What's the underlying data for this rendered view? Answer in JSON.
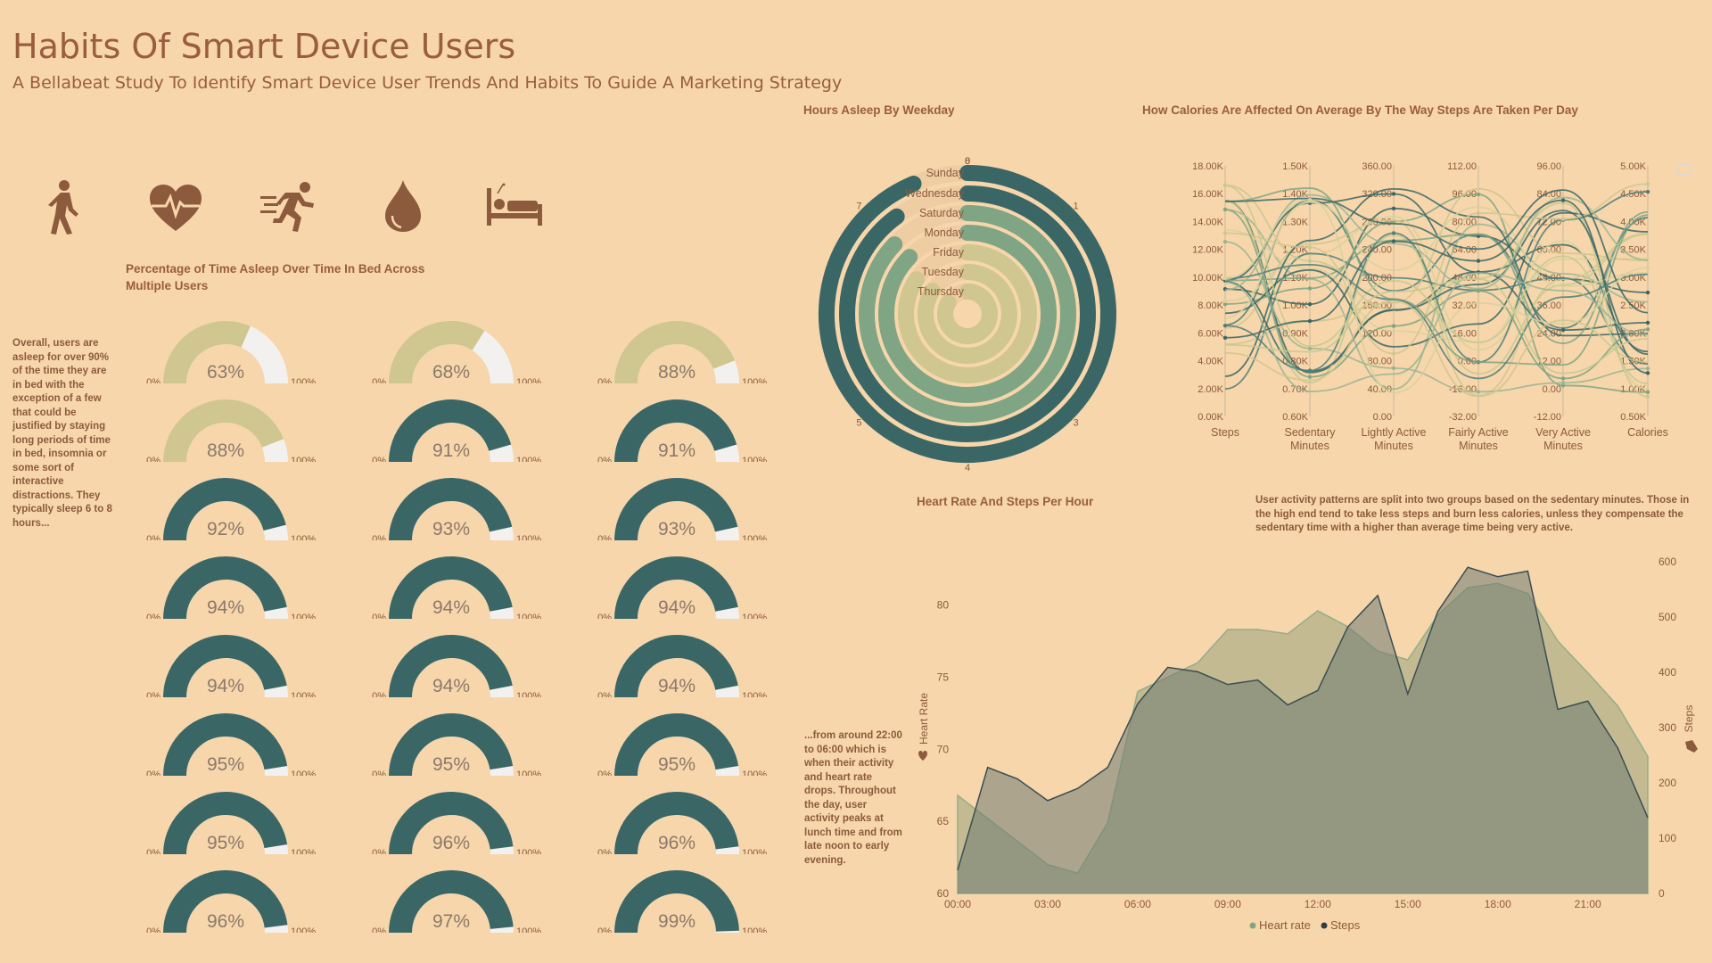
{
  "header": {
    "title": "Habits Of Smart Device Users",
    "subtitle": "A Bellabeat Study To Identify Smart Device User Trends And Habits To Guide A Marketing Strategy"
  },
  "icons": [
    "walking-icon",
    "heart-rate-icon",
    "running-icon",
    "calorie-flame-icon",
    "sleep-bed-icon"
  ],
  "colors": {
    "background": "#F7D6AB",
    "dark_teal": "#3A6766",
    "sage": "#7FA584",
    "khaki": "#CFC690",
    "track": "#F3F1EF",
    "text": "#9A5D3E"
  },
  "notes": {
    "sleep": "Overall, users are asleep for over 90% of the time they are in bed with the exception of a few that could be justified by staying long periods of time in bed, insomnia or some sort of interactive distractions. They typically sleep 6 to 8 hours...",
    "heart": "...from around 22:00 to 06:00 which is when their activity and heart rate drops. Throughout the day, user activity peaks at lunch time and from late noon to early evening.",
    "activity": "User activity patterns are split into two groups based on the sedentary minutes. Those in the high end tend to take less steps and burn less calories, unless they compensate the sedentary time with a higher than average time being very active."
  },
  "chart_data": [
    {
      "type": "gauge",
      "title": "Percentage of Time Asleep Over Time In Bed Across Multiple Users",
      "min_label": "0%",
      "max_label": "100%",
      "values": [
        63,
        68,
        88,
        88,
        91,
        91,
        92,
        93,
        93,
        94,
        94,
        94,
        94,
        94,
        94,
        95,
        95,
        95,
        95,
        96,
        96,
        96,
        97,
        99
      ],
      "labels": [
        "63%",
        "68%",
        "88%",
        "88%",
        "91%",
        "91%",
        "92%",
        "93%",
        "93%",
        "94%",
        "94%",
        "94%",
        "94%",
        "94%",
        "94%",
        "95%",
        "95%",
        "95%",
        "95%",
        "96%",
        "96%",
        "96%",
        "97%",
        "99%"
      ]
    },
    {
      "type": "radial-bar",
      "title": "Hours Asleep By Weekday",
      "categories": [
        "Sunday",
        "Wednesday",
        "Saturday",
        "Monday",
        "Friday",
        "Tuesday",
        "Thursday"
      ],
      "values": [
        7.5,
        7.2,
        6.97,
        6.99,
        6.76,
        6.74,
        6.69
      ],
      "ticks": [
        "0",
        "1",
        "3",
        "4",
        "5",
        "7",
        "8"
      ],
      "max": 8
    },
    {
      "type": "parallel-coordinates",
      "title": "How Calories Are Affected On Average By The Way Steps Are Taken Per  Day",
      "axes": [
        {
          "name": "Steps",
          "ticks": [
            "0.00K",
            "2.00K",
            "4.00K",
            "6.00K",
            "8.00K",
            "10.00K",
            "12.00K",
            "14.00K",
            "16.00K",
            "18.00K"
          ]
        },
        {
          "name": "Sedentary Minutes",
          "ticks": [
            "0.60K",
            "0.70K",
            "0.80K",
            "0.90K",
            "1.00K",
            "1.10K",
            "1.20K",
            "1.30K",
            "1.40K",
            "1.50K"
          ]
        },
        {
          "name": "Lightly Active Minutes",
          "ticks": [
            "0.00",
            "40.00",
            "80.00",
            "120.00",
            "160.00",
            "200.00",
            "240.00",
            "280.00",
            "320.00",
            "360.00"
          ]
        },
        {
          "name": "Fairly Active Minutes",
          "ticks": [
            "-32.00",
            "-16.00",
            "0.00",
            "16.00",
            "32.00",
            "48.00",
            "64.00",
            "80.00",
            "96.00",
            "112.00"
          ]
        },
        {
          "name": "Very Active Minutes",
          "ticks": [
            "-12.00",
            "0.00",
            "12.00",
            "24.00",
            "36.00",
            "48.00",
            "60.00",
            "72.00",
            "84.00",
            "96.00"
          ]
        },
        {
          "name": "Calories",
          "ticks": [
            "0.50K",
            "1.00K",
            "1.50K",
            "2.00K",
            "2.50K",
            "3.00K",
            "3.50K",
            "4.00K",
            "4.50K",
            "5.00K"
          ]
        }
      ]
    },
    {
      "type": "area",
      "title": "Heart Rate And Steps Per Hour",
      "x": [
        "00:00",
        "01:00",
        "02:00",
        "03:00",
        "04:00",
        "05:00",
        "06:00",
        "07:00",
        "08:00",
        "09:00",
        "10:00",
        "11:00",
        "12:00",
        "13:00",
        "14:00",
        "15:00",
        "16:00",
        "17:00",
        "18:00",
        "19:00",
        "20:00",
        "21:00",
        "22:00",
        "23:00"
      ],
      "x_ticks": [
        "00:00",
        "03:00",
        "06:00",
        "09:00",
        "12:00",
        "15:00",
        "18:00",
        "21:00"
      ],
      "series": [
        {
          "name": "Heart rate",
          "axis": "left",
          "values": [
            66.8,
            65.2,
            63.6,
            62.0,
            61.4,
            64.9,
            74.0,
            75.0,
            76.0,
            78.3,
            78.3,
            78.0,
            79.6,
            78.5,
            76.8,
            76.2,
            79.3,
            81.2,
            81.5,
            80.8,
            77.5,
            75.3,
            73.0,
            69.5
          ]
        },
        {
          "name": "Steps",
          "axis": "right",
          "values": [
            42,
            228,
            207,
            168,
            190,
            228,
            343,
            409,
            401,
            378,
            386,
            341,
            367,
            482,
            539,
            361,
            510,
            590,
            573,
            583,
            333,
            348,
            263,
            137
          ]
        }
      ],
      "ylabel_left": "Heart Rate",
      "ylabel_right": "Steps",
      "y_left_ticks": [
        "60",
        "65",
        "70",
        "75",
        "80"
      ],
      "y_right_ticks": [
        "0",
        "100",
        "200",
        "300",
        "400",
        "500",
        "600"
      ],
      "ylim_left": [
        60,
        83
      ],
      "ylim_right": [
        0,
        600
      ],
      "legend": [
        "Heart rate",
        "Steps"
      ],
      "legend_position": "bottom"
    }
  ]
}
